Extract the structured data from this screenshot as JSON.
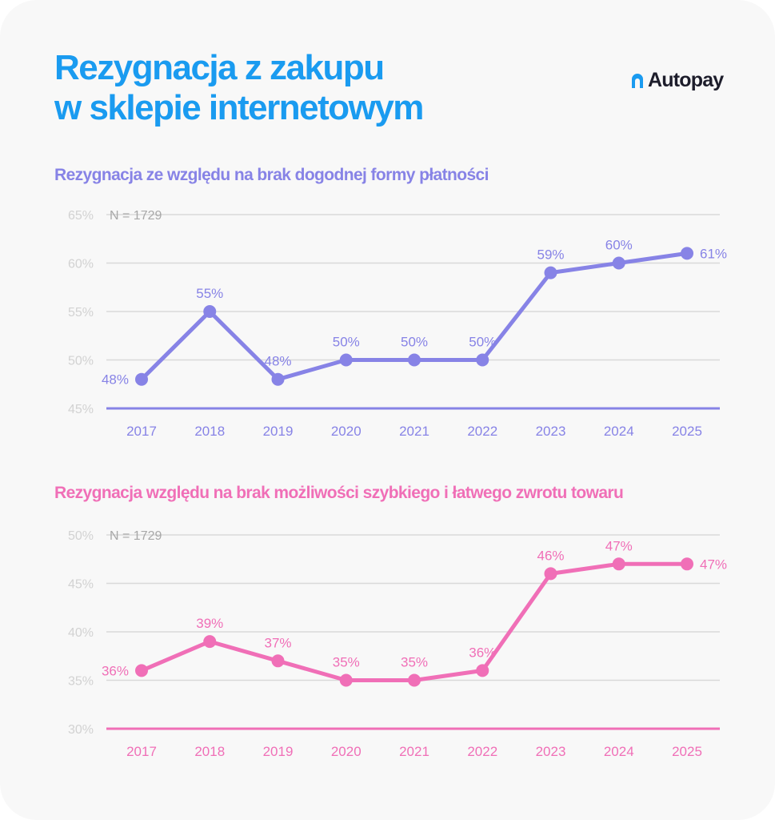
{
  "header": {
    "title_line1": "Rezygnacja z zakupu",
    "title_line2": "w sklepie internetowym",
    "logo_text": "Autopay"
  },
  "colors": {
    "title": "#1a9bf0",
    "chart1": "#8783e6",
    "chart2": "#f06fb7",
    "grid": "#d9d9d9",
    "tick": "#d2d2d2",
    "note": "#a8a8a8"
  },
  "chart_data": [
    {
      "type": "line",
      "title": "Rezygnacja ze względu na brak dogodnej formy płatności",
      "note": "N = 1729",
      "categories": [
        "2017",
        "2018",
        "2019",
        "2020",
        "2021",
        "2022",
        "2023",
        "2024",
        "2025"
      ],
      "series": [
        {
          "values": [
            48,
            55,
            48,
            50,
            50,
            50,
            59,
            60,
            61
          ]
        }
      ],
      "data_labels": [
        "48%",
        "55%",
        "48%",
        "50%",
        "50%",
        "50%",
        "59%",
        "60%",
        "61%"
      ],
      "y_ticks": [
        "45%",
        "50%",
        "55%",
        "60%",
        "65%"
      ],
      "ylim": [
        45,
        65
      ],
      "grid": true
    },
    {
      "type": "line",
      "title": "Rezygnacja względu na brak możliwości szybkiego i łatwego zwrotu towaru",
      "note": "N = 1729",
      "categories": [
        "2017",
        "2018",
        "2019",
        "2020",
        "2021",
        "2022",
        "2023",
        "2024",
        "2025"
      ],
      "series": [
        {
          "values": [
            36,
            39,
            37,
            35,
            35,
            36,
            46,
            47,
            47
          ]
        }
      ],
      "data_labels": [
        "36%",
        "39%",
        "37%",
        "35%",
        "35%",
        "36%",
        "46%",
        "47%",
        "47%"
      ],
      "y_ticks": [
        "30%",
        "35%",
        "40%",
        "45%",
        "50%"
      ],
      "ylim": [
        30,
        50
      ],
      "grid": true
    }
  ]
}
